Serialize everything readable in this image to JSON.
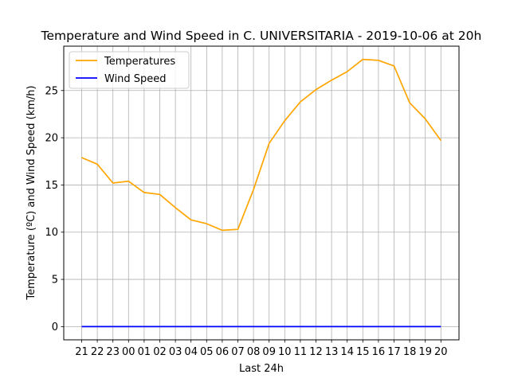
{
  "chart_data": {
    "type": "line",
    "title": "Temperature and Wind Speed in C. UNIVERSITARIA - 2019-10-06 at 20h",
    "xlabel": "Last 24h",
    "ylabel": "Temperature (ºC) and Wind Speed (km/h)",
    "categories": [
      "21",
      "22",
      "23",
      "00",
      "01",
      "02",
      "03",
      "04",
      "05",
      "06",
      "07",
      "08",
      "09",
      "10",
      "11",
      "12",
      "13",
      "14",
      "15",
      "16",
      "17",
      "18",
      "19",
      "20"
    ],
    "ylim": [
      -1.4,
      29.7
    ],
    "yticks": [
      0,
      5,
      10,
      15,
      20,
      25
    ],
    "grid": true,
    "legend": "top-left",
    "series": [
      {
        "name": "Temperatures",
        "color": "#ffa500",
        "values": [
          17.9,
          17.2,
          15.2,
          15.4,
          14.2,
          14.0,
          12.6,
          11.3,
          10.9,
          10.2,
          10.3,
          14.5,
          19.4,
          21.8,
          23.8,
          25.1,
          26.1,
          27.0,
          28.3,
          28.2,
          27.6,
          23.7,
          22.0,
          19.7
        ]
      },
      {
        "name": "Wind Speed",
        "color": "#0000ff",
        "values": [
          0,
          0,
          0,
          0,
          0,
          0,
          0,
          0,
          0,
          0,
          0,
          0,
          0,
          0,
          0,
          0,
          0,
          0,
          0,
          0,
          0,
          0,
          0,
          0
        ]
      }
    ]
  }
}
